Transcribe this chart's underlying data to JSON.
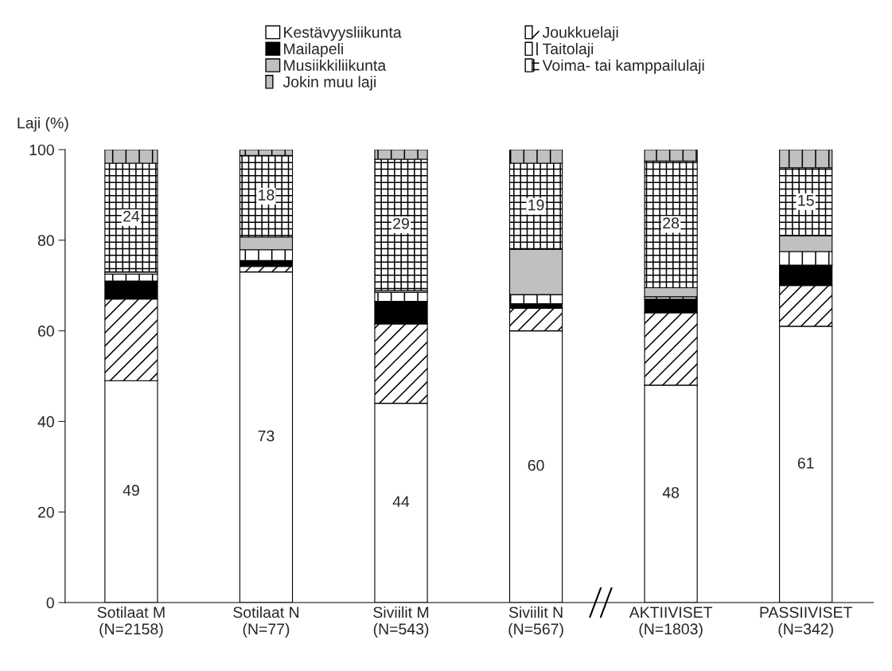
{
  "chart_data": {
    "type": "bar",
    "stacked": true,
    "ylabel": "Laji (%)",
    "categories": [
      "Sotilaat M\n(N=2158)",
      "Sotilaat N\n(N=77)",
      "Siviilit M\n(N=543)",
      "Siviilit N\n(N=567)",
      "AKTIIVISET\n(N=1803)",
      "PASSIIVISET\n(N=342)"
    ],
    "series": [
      {
        "name": "Kestävyysliikunta",
        "color": "#ffffff",
        "values": [
          49,
          73,
          44,
          60,
          48,
          61
        ],
        "value_labels": [
          "49",
          "73",
          "44",
          "60",
          "48",
          "61"
        ]
      },
      {
        "name": "Joukkuelaji",
        "color": "#ffffff",
        "values": [
          18,
          1.2,
          17.5,
          5,
          16,
          9
        ]
      },
      {
        "name": "Mailapeli",
        "color": "#000000",
        "values": [
          4,
          1.3,
          5,
          1,
          3,
          4.5
        ]
      },
      {
        "name": "Taitolaji",
        "color": "#ffffff",
        "values": [
          1.5,
          2.4,
          2,
          2,
          0.5,
          3
        ]
      },
      {
        "name": "Musiikkiliikunta",
        "color": "#c0c0c0",
        "values": [
          0.5,
          2.8,
          0.4,
          10,
          2,
          3.5
        ]
      },
      {
        "name": "Voima- tai kamppailulaji",
        "color": "#ffffff",
        "values": [
          24,
          18,
          29,
          19,
          28,
          15
        ],
        "value_labels": [
          "24",
          "18",
          "29",
          "19",
          "28",
          "15"
        ]
      },
      {
        "name": "Jokin muu laji",
        "color": "#c0c0c0",
        "values": [
          3,
          1.3,
          2.1,
          3,
          2.5,
          4
        ]
      }
    ],
    "ylim": [
      0,
      100
    ],
    "yticks": [
      0,
      20,
      40,
      60,
      80,
      100
    ],
    "grid": false,
    "legend": "top"
  }
}
